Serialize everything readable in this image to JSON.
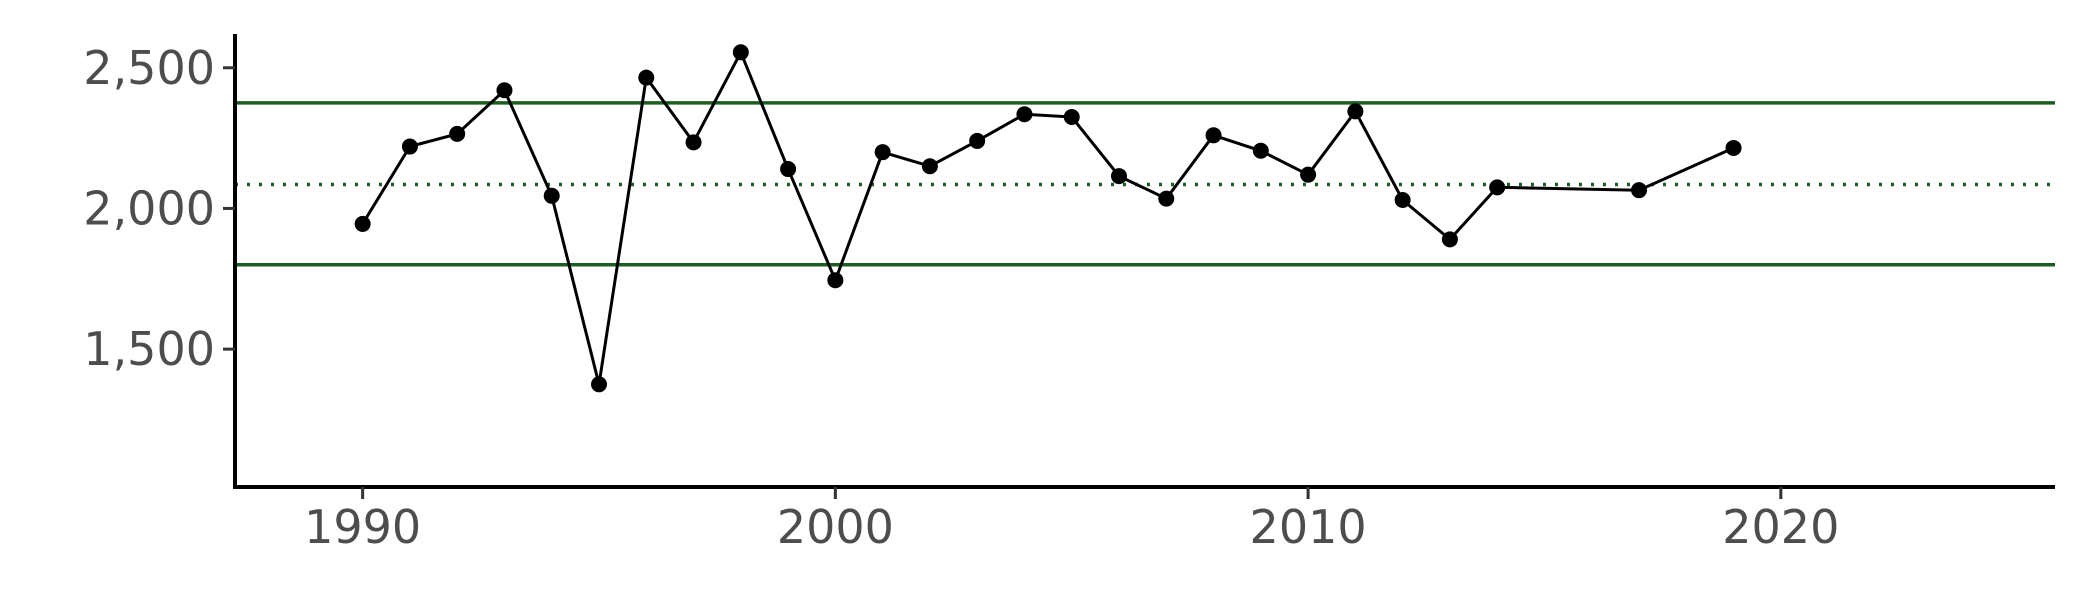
{
  "chart_data": {
    "type": "line",
    "title": "",
    "xlabel": "",
    "ylabel": "",
    "xlim": [
      1987.3,
      2025.8
    ],
    "ylim": [
      1010,
      2620
    ],
    "x_ticks": [
      1990,
      2000,
      2010,
      2020
    ],
    "x_tick_labels": [
      "1990",
      "2000",
      "2010",
      "2020"
    ],
    "y_ticks": [
      1500,
      2000,
      2500
    ],
    "y_tick_labels": [
      "1,500",
      "2,000",
      "2,500"
    ],
    "grid": false,
    "legend": "none",
    "series": [
      {
        "points": [
          {
            "x": 1990,
            "y": 1945
          },
          {
            "x": 1991,
            "y": 2220
          },
          {
            "x": 1992,
            "y": 2265
          },
          {
            "x": 1993,
            "y": 2420
          },
          {
            "x": 1994,
            "y": 2045
          },
          {
            "x": 1995,
            "y": 1375
          },
          {
            "x": 1996,
            "y": 2465
          },
          {
            "x": 1997,
            "y": 2235
          },
          {
            "x": 1998,
            "y": 2555
          },
          {
            "x": 1999,
            "y": 2140
          },
          {
            "x": 2000,
            "y": 1745
          },
          {
            "x": 2001,
            "y": 2200
          },
          {
            "x": 2002,
            "y": 2150
          },
          {
            "x": 2003,
            "y": 2240
          },
          {
            "x": 2004,
            "y": 2335
          },
          {
            "x": 2005,
            "y": 2325
          },
          {
            "x": 2006,
            "y": 2115
          },
          {
            "x": 2007,
            "y": 2035
          },
          {
            "x": 2008,
            "y": 2260
          },
          {
            "x": 2009,
            "y": 2205
          },
          {
            "x": 2010,
            "y": 2120
          },
          {
            "x": 2011,
            "y": 2345
          },
          {
            "x": 2012,
            "y": 2030
          },
          {
            "x": 2013,
            "y": 1890
          },
          {
            "x": 2014,
            "y": 2075
          },
          {
            "x": 2017,
            "y": 2065
          },
          {
            "x": 2019,
            "y": 2215
          }
        ]
      }
    ],
    "reference_lines": {
      "mean": 2085,
      "upper": 2375,
      "lower": 1800
    },
    "colors": {
      "series": "#000000",
      "reference": "#1b5e20",
      "axis": "#000000",
      "tick_label": "#4d4d4d"
    }
  }
}
